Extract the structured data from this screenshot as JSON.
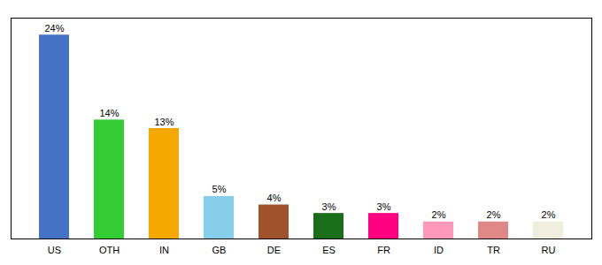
{
  "chart_data": {
    "type": "bar",
    "categories": [
      "US",
      "OTH",
      "IN",
      "GB",
      "DE",
      "ES",
      "FR",
      "ID",
      "TR",
      "RU"
    ],
    "values": [
      24,
      14,
      13,
      5,
      4,
      3,
      3,
      2,
      2,
      2
    ],
    "value_labels": [
      "24%",
      "14%",
      "13%",
      "5%",
      "4%",
      "3%",
      "3%",
      "2%",
      "2%",
      "2%"
    ],
    "colors": [
      "#4472c4",
      "#33cc33",
      "#f5a800",
      "#87ceeb",
      "#a0522d",
      "#1a6e1a",
      "#ff0080",
      "#ff99bb",
      "#e08888",
      "#f0eedc"
    ],
    "ylim": [
      0,
      26
    ],
    "grid": false,
    "data_labels": true,
    "tick_labels": "x"
  }
}
